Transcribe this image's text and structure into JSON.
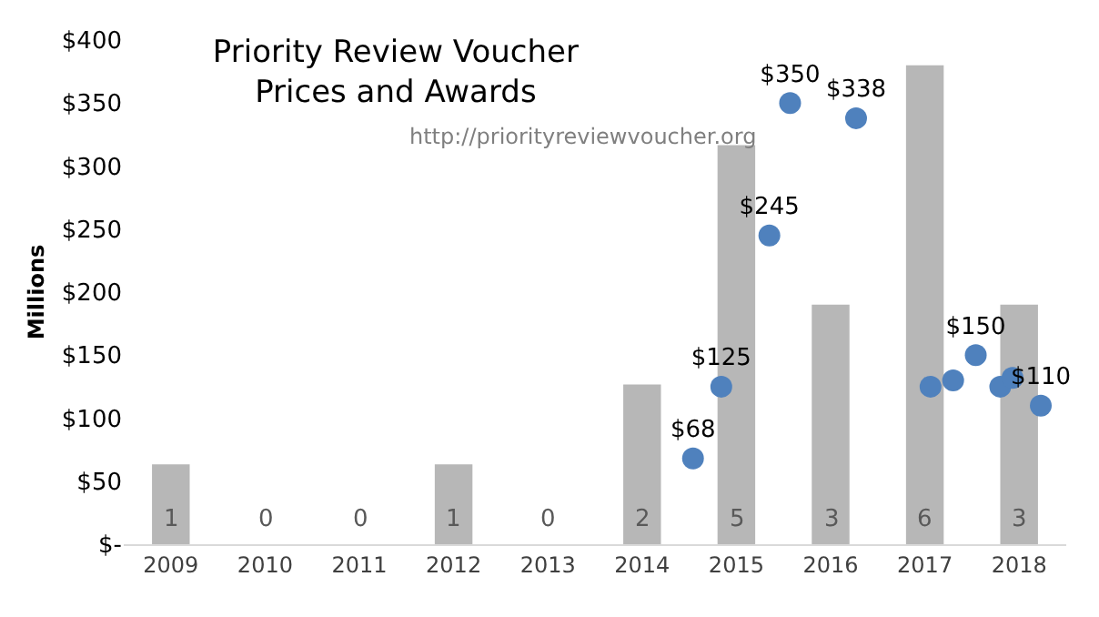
{
  "chart_data": {
    "type": "bar",
    "title": "Priority Review Voucher\nPrices and Awards",
    "subtitle": "http://priorityreviewvoucher.org",
    "ylabel": "Millions",
    "x": [
      2009,
      2010,
      2011,
      2012,
      2013,
      2014,
      2015,
      2016,
      2017,
      2018
    ],
    "xlim": [
      2008.5,
      2018.5
    ],
    "xticks": [
      2009,
      2010,
      2011,
      2012,
      2013,
      2014,
      2015,
      2016,
      2017,
      2018
    ],
    "ylim": [
      0,
      400
    ],
    "yticks": [
      {
        "value": 0,
        "label": "$-"
      },
      {
        "value": 50,
        "label": "$50"
      },
      {
        "value": 100,
        "label": "$100"
      },
      {
        "value": 150,
        "label": "$150"
      },
      {
        "value": 200,
        "label": "$200"
      },
      {
        "value": 250,
        "label": "$250"
      },
      {
        "value": 300,
        "label": "$300"
      },
      {
        "value": 350,
        "label": "$350"
      },
      {
        "value": 400,
        "label": "$400"
      }
    ],
    "series": [
      {
        "axis": "y2",
        "color": "#b7b7b7",
        "values": [
          1,
          0,
          0,
          1,
          0,
          2,
          5,
          3,
          6,
          3
        ],
        "value_labels": [
          "1",
          "0",
          "0",
          "1",
          "0",
          "2",
          "5",
          "3",
          "6",
          "3"
        ]
      },
      {
        "type": "scatter",
        "axis": "y",
        "color": "#4f81bd",
        "x": [
          2014.54,
          2014.84,
          2015.35,
          2015.57,
          2016.27,
          2017.06,
          2017.3,
          2017.54,
          2017.8,
          2017.93,
          2018.23
        ],
        "values": [
          68,
          125,
          245,
          350,
          338,
          125,
          130,
          150,
          125,
          132,
          110
        ],
        "value_labels": [
          "$68",
          "$125",
          "$245",
          "$350",
          "$338",
          null,
          null,
          "$150",
          null,
          null,
          "$110"
        ]
      }
    ]
  }
}
